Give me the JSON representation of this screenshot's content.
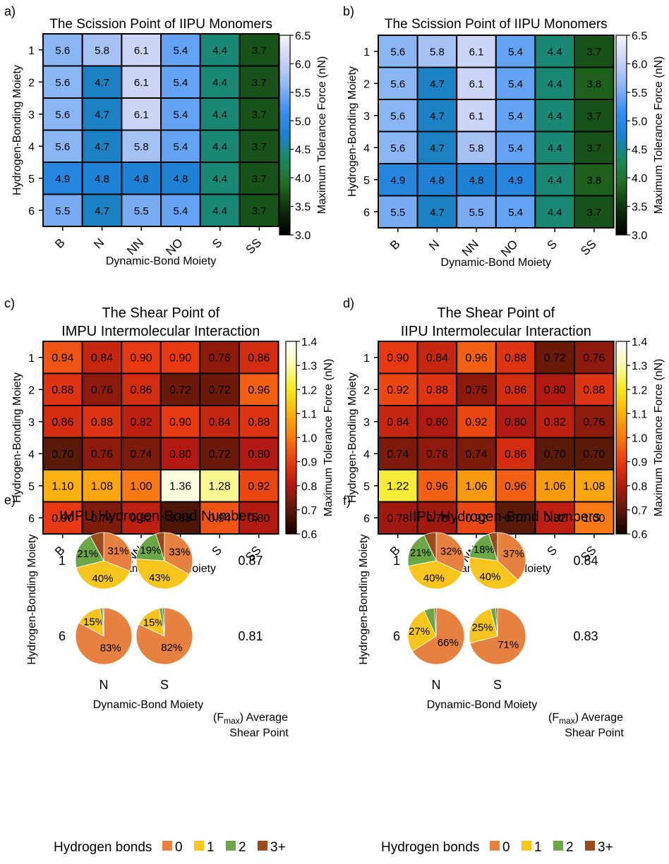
{
  "colors": {
    "slice_0": "#E6813F",
    "slice_1": "#F8C51C",
    "slice_2": "#6BA746",
    "slice_3plus": "#9B4A1B"
  },
  "colormaps": {
    "blue_green": [
      "#000000",
      "#0d2d0d",
      "#1f6a1f",
      "#1a8a5a",
      "#1a80d0",
      "#3c8ef3",
      "#8fb8f3",
      "#c9d2f6",
      "#f6f6fb"
    ],
    "heat": [
      "#120000",
      "#5a1a08",
      "#b01a10",
      "#e83a12",
      "#f77a14",
      "#fbb10f",
      "#f7e81a",
      "#fbfbb0",
      "#ffffff"
    ]
  },
  "chart_data": [
    {
      "type": "heatmap",
      "panel": "a)",
      "title": "The Scission Point of IIPU Monomers",
      "xlabel": "Dynamic-Bond Moiety",
      "ylabel": "Hydrogen-Bonding Moiety",
      "colorbar_label": "Maximum Tolerance Force (nN)",
      "x": [
        "B",
        "N",
        "NN",
        "NO",
        "S",
        "SS"
      ],
      "y": [
        "1",
        "2",
        "3",
        "4",
        "5",
        "6"
      ],
      "values": [
        [
          5.6,
          5.8,
          6.1,
          5.4,
          4.4,
          3.7
        ],
        [
          5.6,
          4.7,
          6.1,
          5.4,
          4.4,
          3.7
        ],
        [
          5.6,
          4.7,
          6.1,
          5.4,
          4.4,
          3.7
        ],
        [
          5.6,
          4.7,
          5.8,
          5.4,
          4.4,
          3.7
        ],
        [
          4.9,
          4.8,
          4.8,
          4.8,
          4.4,
          3.7
        ],
        [
          5.5,
          4.7,
          5.5,
          5.4,
          4.4,
          3.7
        ]
      ],
      "labels": [
        [
          "5.6",
          "5.8",
          "6.1",
          "5.4",
          "4.4",
          "3.7"
        ],
        [
          "5.6",
          "4.7",
          "6.1",
          "5.4",
          "4.4",
          "3.7"
        ],
        [
          "5.6",
          "4.7",
          "6.1",
          "5.4",
          "4.4",
          "3.7"
        ],
        [
          "5.6",
          "4.7",
          "5.8",
          "5.4",
          "4.4",
          "3.7"
        ],
        [
          "4.9",
          "4.8",
          "4.8",
          "4.8",
          "4.4",
          "3.7"
        ],
        [
          "5.5",
          "4.7",
          "5.5",
          "5.4",
          "4.4",
          "3.7"
        ]
      ],
      "clim": [
        3.0,
        6.5
      ],
      "colorbar_ticks": [
        "3.0",
        "3.5",
        "4.0",
        "4.5",
        "5.0",
        "5.5",
        "6.0",
        "6.5"
      ],
      "colormap": "blue_green"
    },
    {
      "type": "heatmap",
      "panel": "b)",
      "title": "The Scission Point of IIPU Monomers",
      "xlabel": "Dynamic-Bond Moiety",
      "ylabel": "Hydrogen-Bonding Moiety",
      "colorbar_label": "Maximum Tolerance Force (nN)",
      "x": [
        "B",
        "N",
        "NN",
        "NO",
        "S",
        "SS"
      ],
      "y": [
        "1",
        "2",
        "3",
        "4",
        "5",
        "6"
      ],
      "values": [
        [
          5.6,
          5.8,
          6.1,
          5.4,
          4.4,
          3.7
        ],
        [
          5.6,
          4.7,
          6.1,
          5.4,
          4.4,
          3.8
        ],
        [
          5.6,
          4.7,
          6.1,
          5.4,
          4.4,
          3.7
        ],
        [
          5.6,
          4.7,
          5.8,
          5.4,
          4.4,
          3.7
        ],
        [
          4.9,
          4.8,
          4.8,
          4.9,
          4.4,
          3.8
        ],
        [
          5.5,
          4.7,
          5.5,
          5.4,
          4.4,
          3.7
        ]
      ],
      "labels": [
        [
          "5.6",
          "5.8",
          "6.1",
          "5.4",
          "4.4",
          "3.7"
        ],
        [
          "5.6",
          "4.7",
          "6.1",
          "5.4",
          "4.4",
          "3.8"
        ],
        [
          "5.6",
          "4.7",
          "6.1",
          "5.4",
          "4.4",
          "3.7"
        ],
        [
          "5.6",
          "4.7",
          "5.8",
          "5.4",
          "4.4",
          "3.7"
        ],
        [
          "4.9",
          "4.8",
          "4.8",
          "4.9",
          "4.4",
          "3.8"
        ],
        [
          "5.5",
          "4.7",
          "5.5",
          "5.4",
          "4.4",
          "3.7"
        ]
      ],
      "clim": [
        3.0,
        6.5
      ],
      "colorbar_ticks": [
        "3.0",
        "3.5",
        "4.0",
        "4.5",
        "5.0",
        "5.5",
        "6.0",
        "6.5"
      ],
      "colormap": "blue_green"
    },
    {
      "type": "heatmap",
      "panel": "c)",
      "title": [
        "The Shear Point of",
        "IMPU Intermolecular Interaction"
      ],
      "xlabel": "Dynamic-Bond Moiety",
      "ylabel": "Hydrogen-Bonding Moiety",
      "colorbar_label": "Maximum Tolerance Force (nN)",
      "x": [
        "B",
        "N",
        "NN",
        "NO",
        "S",
        "SS"
      ],
      "y": [
        "1",
        "2",
        "3",
        "4",
        "5",
        "6"
      ],
      "values": [
        [
          0.94,
          0.84,
          0.9,
          0.9,
          0.76,
          0.86
        ],
        [
          0.88,
          0.76,
          0.86,
          0.72,
          0.72,
          0.96
        ],
        [
          0.86,
          0.88,
          0.82,
          0.9,
          0.84,
          0.88
        ],
        [
          0.7,
          0.76,
          0.74,
          0.8,
          0.72,
          0.8
        ],
        [
          1.1,
          1.08,
          1.0,
          1.36,
          1.28,
          0.92
        ],
        [
          0.9,
          0.74,
          0.82,
          0.68,
          0.94,
          0.8
        ]
      ],
      "labels": [
        [
          "0.94",
          "0.84",
          "0.90",
          "0.90",
          "0.76",
          "0.86"
        ],
        [
          "0.88",
          "0.76",
          "0.86",
          "0.72",
          "0.72",
          "0.96"
        ],
        [
          "0.86",
          "0.88",
          "0.82",
          "0.90",
          "0.84",
          "0.88"
        ],
        [
          "0.70",
          "0.76",
          "0.74",
          "0.80",
          "0.72",
          "0.80"
        ],
        [
          "1.10",
          "1.08",
          "1.00",
          "1.36",
          "1.28",
          "0.92"
        ],
        [
          "0.90",
          "0.74",
          "0.82",
          "0.68",
          "0.94",
          "0.80"
        ]
      ],
      "clim": [
        0.6,
        1.4
      ],
      "colorbar_ticks": [
        "0.6",
        "0.7",
        "0.8",
        "0.9",
        "1.0",
        "1.1",
        "1.2",
        "1.3",
        "1.4"
      ],
      "colormap": "heat"
    },
    {
      "type": "heatmap",
      "panel": "d)",
      "title": [
        "The Shear Point of",
        "IIPU Intermolecular Interaction"
      ],
      "xlabel": "Dynamic-Bond Moiety",
      "ylabel": "Hydrogen-Bonding Moiety",
      "colorbar_label": "Maximum Tolerance Force (nN)",
      "x": [
        "B",
        "N",
        "NN",
        "NO",
        "S",
        "SS"
      ],
      "y": [
        "1",
        "2",
        "3",
        "4",
        "5",
        "6"
      ],
      "values": [
        [
          0.9,
          0.84,
          0.96,
          0.88,
          0.72,
          0.76
        ],
        [
          0.92,
          0.88,
          0.76,
          0.86,
          0.8,
          0.88
        ],
        [
          0.84,
          0.8,
          0.92,
          0.8,
          0.82,
          0.76
        ],
        [
          0.74,
          0.76,
          0.74,
          0.86,
          0.7,
          0.7
        ],
        [
          1.22,
          0.96,
          1.06,
          0.96,
          1.06,
          1.08
        ],
        [
          0.78,
          0.78,
          0.92,
          0.7,
          0.82,
          1.0
        ]
      ],
      "labels": [
        [
          "0.90",
          "0.84",
          "0.96",
          "0.88",
          "0.72",
          "0.76"
        ],
        [
          "0.92",
          "0.88",
          "0.76",
          "0.86",
          "0.80",
          "0.88"
        ],
        [
          "0.84",
          "0.80",
          "0.92",
          "0.80",
          "0.82",
          "0.76"
        ],
        [
          "0.74",
          "0.76",
          "0.74",
          "0.86",
          "0.70",
          "0.70"
        ],
        [
          "1.22",
          "0.96",
          "1.06",
          "0.96",
          "1.06",
          "1.08"
        ],
        [
          "0.78",
          "0.78",
          "0.92",
          "0.70",
          "0.82",
          "1.00"
        ]
      ],
      "clim": [
        0.6,
        1.4
      ],
      "colorbar_ticks": [
        "0.6",
        "0.7",
        "0.8",
        "0.9",
        "1.0",
        "1.1",
        "1.2",
        "1.3",
        "1.4"
      ],
      "colormap": "heat"
    },
    {
      "type": "pie",
      "panel": "e)",
      "title": "IMPU Hydrogen-Bond Numbers",
      "xlabel": "Dynamic-Bond Moiety",
      "ylabel": "Hydrogen-Bonding Moiety",
      "columns": [
        "N",
        "S"
      ],
      "rows": [
        "1",
        "6"
      ],
      "avg_label": [
        "(F_max) Average",
        "Shear Point"
      ],
      "avg_values": [
        "0.87",
        "0.81"
      ],
      "pies": [
        {
          "row": "1",
          "col": "N",
          "values": [
            31,
            40,
            21,
            8
          ],
          "labels": [
            "31%",
            "40%",
            "21%",
            ""
          ]
        },
        {
          "row": "1",
          "col": "S",
          "values": [
            33,
            43,
            19,
            5
          ],
          "labels": [
            "33%",
            "43%",
            "19%",
            ""
          ]
        },
        {
          "row": "6",
          "col": "N",
          "values": [
            83,
            15,
            1.5,
            0.5
          ],
          "labels": [
            "83%",
            "15%",
            "",
            ""
          ]
        },
        {
          "row": "6",
          "col": "S",
          "values": [
            82,
            15,
            2,
            1
          ],
          "labels": [
            "82%",
            "15%",
            "",
            ""
          ]
        }
      ]
    },
    {
      "type": "pie",
      "panel": "f)",
      "title": "IIPU Hydrogen-Bond Numbers",
      "xlabel": "Dynamic-Bond Moiety",
      "ylabel": "Hydrogen-Bonding Moiety",
      "columns": [
        "N",
        "S"
      ],
      "rows": [
        "1",
        "6"
      ],
      "avg_label": [
        "(F_max) Average",
        "Shear Point"
      ],
      "avg_values": [
        "0.84",
        "0.83"
      ],
      "pies": [
        {
          "row": "1",
          "col": "N",
          "values": [
            32,
            40,
            21,
            7
          ],
          "labels": [
            "32%",
            "40%",
            "21%",
            ""
          ]
        },
        {
          "row": "1",
          "col": "S",
          "values": [
            37,
            40,
            18,
            5
          ],
          "labels": [
            "37%",
            "40%",
            "18%",
            ""
          ]
        },
        {
          "row": "6",
          "col": "N",
          "values": [
            66,
            27,
            6,
            1
          ],
          "labels": [
            "66%",
            "27%",
            "",
            ""
          ]
        },
        {
          "row": "6",
          "col": "S",
          "values": [
            71,
            25,
            3,
            1
          ],
          "labels": [
            "71%",
            "25%",
            "",
            ""
          ]
        }
      ]
    }
  ],
  "legend": {
    "title": "Hydrogen bonds",
    "items": [
      "0",
      "1",
      "2",
      "3+"
    ]
  }
}
